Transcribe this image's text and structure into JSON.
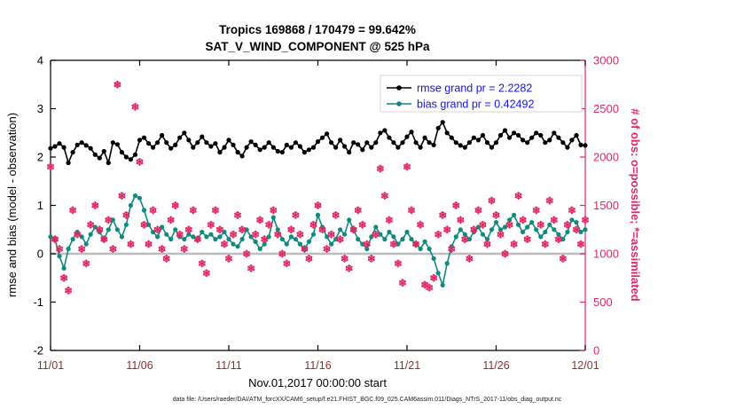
{
  "chart_data": {
    "type": "line",
    "title_line1": "Tropics 169868 / 170479 = 99.642%",
    "title_line2": "SAT_V_WIND_COMPONENT @ 525 hPa",
    "xlabel": "Nov.01,2017 00:00:00 start",
    "ylabel_left": "rmse and bias (model - observation)",
    "ylabel_right": "# of obs: o=possible; *=assimilated",
    "caption": "data file: /Users/raeder/DAI/ATM_forcXX/CAM6_setup/f.e21.FHIST_BGC.f09_025.CAM6assim.011/Diags_NTrS_2017-11/obs_diag_output.nc",
    "x_tick_labels": [
      "11/01",
      "11/06",
      "11/11",
      "11/16",
      "11/21",
      "11/26",
      "12/01"
    ],
    "ylim_left": [
      -2,
      4
    ],
    "yticks_left": [
      -2,
      -1,
      0,
      1,
      2,
      3,
      4
    ],
    "ylim_right": [
      0,
      3000
    ],
    "yticks_right": [
      0,
      500,
      1000,
      1500,
      2000,
      2500,
      3000
    ],
    "n_points": 121,
    "grid": false,
    "legend_position": "top-right-inside",
    "zero_line_color": "#bdbdbd",
    "legend_text_color": "#1414e6",
    "right_axis_color": "#e02862",
    "x_tick_label_color": "#8b2f2f",
    "series": [
      {
        "name": "rmse",
        "legend": "rmse grand pr = 2.2282",
        "color": "#000000",
        "axis": "left",
        "marker": "dot",
        "values": [
          2.18,
          2.22,
          2.28,
          2.2,
          1.88,
          2.1,
          2.25,
          2.3,
          2.24,
          2.18,
          2.05,
          1.98,
          2.12,
          1.88,
          2.3,
          2.26,
          2.1,
          2.0,
          1.95,
          2.05,
          2.35,
          2.4,
          2.28,
          2.2,
          2.3,
          2.45,
          2.3,
          2.18,
          2.25,
          2.4,
          2.5,
          2.35,
          2.2,
          2.3,
          2.42,
          2.3,
          2.22,
          2.28,
          2.1,
          2.2,
          2.35,
          2.25,
          2.1,
          2.02,
          2.2,
          2.32,
          2.25,
          2.15,
          2.2,
          2.3,
          2.2,
          2.12,
          2.1,
          2.25,
          2.2,
          2.3,
          2.22,
          2.1,
          2.15,
          2.2,
          2.32,
          2.4,
          2.48,
          2.3,
          2.2,
          2.35,
          2.22,
          2.1,
          2.3,
          2.26,
          2.15,
          2.3,
          2.2,
          2.3,
          2.5,
          2.55,
          2.4,
          2.3,
          2.2,
          2.3,
          2.42,
          2.52,
          2.3,
          2.2,
          2.4,
          2.3,
          2.25,
          2.6,
          2.72,
          2.5,
          2.4,
          2.3,
          2.24,
          2.2,
          2.3,
          2.4,
          2.35,
          2.45,
          2.3,
          2.2,
          2.3,
          2.45,
          2.55,
          2.4,
          2.5,
          2.45,
          2.35,
          2.3,
          2.4,
          2.5,
          2.45,
          2.3,
          2.35,
          2.5,
          2.4,
          2.3,
          2.2,
          2.35,
          2.45,
          2.25,
          2.24
        ]
      },
      {
        "name": "bias",
        "legend": "bias grand pr = 0.42492",
        "color": "#0e8a80",
        "axis": "left",
        "marker": "dot",
        "values": [
          0.35,
          0.3,
          -0.05,
          -0.3,
          0.1,
          0.3,
          0.45,
          0.35,
          0.2,
          0.4,
          0.55,
          0.45,
          0.3,
          0.5,
          0.7,
          0.5,
          0.35,
          0.6,
          1.0,
          1.2,
          1.15,
          0.9,
          0.6,
          0.45,
          0.35,
          0.55,
          0.4,
          0.3,
          0.5,
          0.35,
          0.3,
          0.4,
          0.35,
          0.3,
          0.45,
          0.35,
          0.4,
          0.3,
          0.35,
          0.45,
          0.3,
          0.2,
          0.15,
          0.3,
          0.5,
          0.35,
          0.25,
          0.1,
          0.2,
          0.35,
          0.75,
          0.5,
          0.3,
          0.2,
          0.35,
          0.3,
          0.2,
          0.1,
          0.25,
          0.4,
          0.8,
          0.55,
          0.35,
          0.2,
          0.3,
          0.5,
          0.4,
          0.7,
          0.5,
          0.3,
          0.2,
          0.1,
          0.35,
          0.55,
          0.4,
          0.3,
          0.45,
          0.35,
          0.2,
          0.3,
          0.45,
          0.3,
          0.2,
          0.1,
          0.25,
          0.1,
          -0.1,
          -0.4,
          -0.65,
          -0.2,
          0.15,
          0.35,
          0.5,
          0.4,
          0.3,
          0.45,
          0.55,
          0.4,
          0.3,
          0.5,
          0.65,
          0.5,
          0.55,
          0.7,
          0.8,
          0.6,
          0.45,
          0.55,
          0.65,
          0.5,
          0.35,
          0.45,
          0.6,
          0.5,
          0.4,
          0.3,
          0.45,
          0.7,
          0.65,
          0.45,
          0.5
        ]
      },
      {
        "name": "num_obs",
        "legend": "",
        "color": "#e02862",
        "axis": "right",
        "marker": "asterisk-and-circle",
        "values": [
          1900,
          1150,
          1050,
          750,
          620,
          1450,
          1200,
          1050,
          900,
          1300,
          1500,
          1250,
          1150,
          1350,
          1050,
          2750,
          1600,
          1400,
          1100,
          2520,
          1950,
          1300,
          1100,
          1450,
          1250,
          1050,
          950,
          1350,
          1500,
          1200,
          1050,
          1250,
          1450,
          1150,
          900,
          800,
          1300,
          1450,
          1250,
          1100,
          950,
          1200,
          1400,
          1250,
          1000,
          850,
          1200,
          1350,
          1150,
          1300,
          1450,
          1200,
          1000,
          900,
          1250,
          1400,
          1200,
          1050,
          950,
          1300,
          1500,
          1250,
          1050,
          1200,
          1400,
          1150,
          950,
          850,
          1250,
          1450,
          1300,
          1100,
          950,
          1200,
          1880,
          1600,
          1350,
          1100,
          900,
          700,
          1900,
          1450,
          1100,
          1300,
          680,
          650,
          750,
          1200,
          1400,
          1250,
          1050,
          1500,
          1350,
          1150,
          950,
          1250,
          1450,
          1300,
          1100,
          1550,
          1400,
          1200,
          1000,
          1300,
          1100,
          1600,
          1350,
          1150,
          2550,
          1450,
          1300,
          1100,
          1550,
          1350,
          1150,
          950,
          1300,
          1450,
          1250,
          1100,
          1350
        ]
      }
    ]
  }
}
